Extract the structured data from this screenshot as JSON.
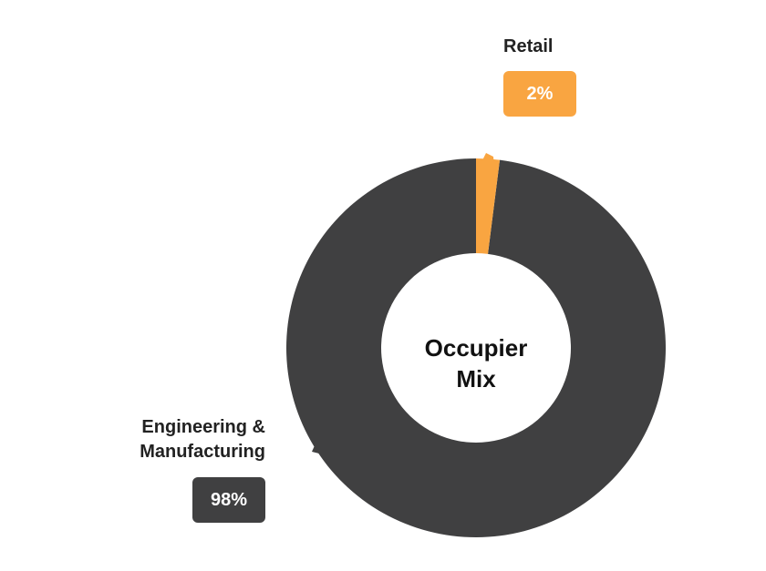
{
  "chart_data": {
    "type": "donut",
    "center_label": [
      "Occupier",
      "Mix"
    ],
    "categories": [
      "Retail",
      "Engineering & Manufacturing"
    ],
    "values": [
      2,
      98
    ],
    "value_labels": [
      "2%",
      "98%"
    ],
    "colors": [
      "#f9a541",
      "#404041"
    ]
  }
}
